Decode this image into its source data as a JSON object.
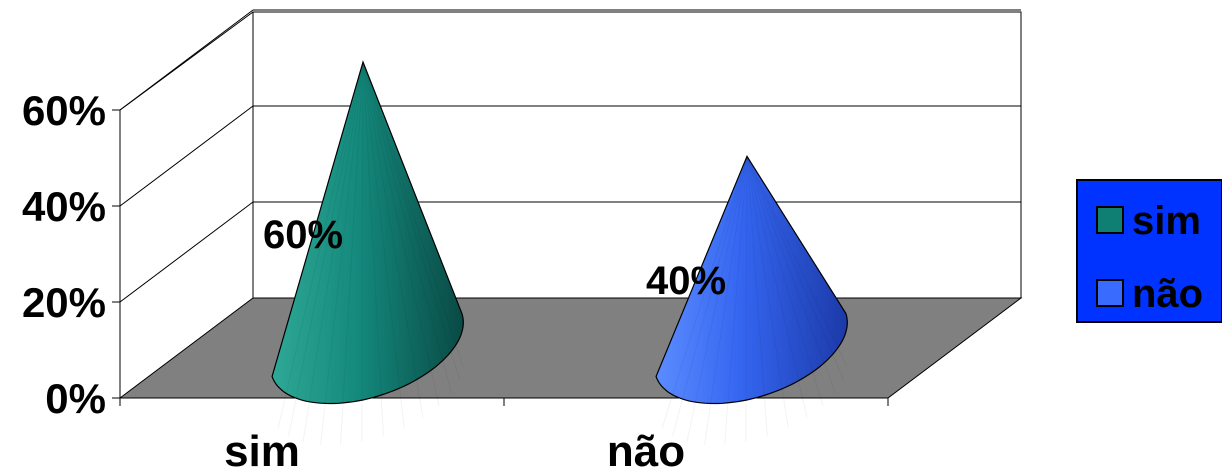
{
  "chart_data": {
    "type": "bar",
    "style": "3d-cone",
    "categories": [
      "sim",
      "não"
    ],
    "values": [
      60,
      40
    ],
    "value_unit": "%",
    "data_labels": [
      "60%",
      "40%"
    ],
    "ylim": [
      0,
      60
    ],
    "yticks": [
      "0%",
      "20%",
      "40%",
      "60%"
    ],
    "grid": true,
    "legend_position": "right",
    "legend": [
      {
        "label": "sim",
        "color": "#0f7f74"
      },
      {
        "label": "não",
        "color": "#3a6bff"
      }
    ],
    "colors": {
      "floor": "#808080",
      "legend_background": "#0033ff"
    }
  }
}
